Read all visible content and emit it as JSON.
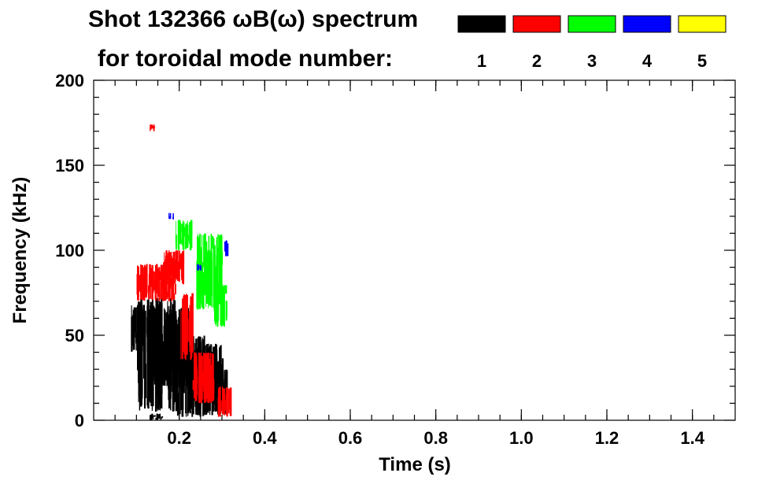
{
  "chart_data": {
    "type": "heatmap",
    "title": "Shot 132366 ωB(ω) spectrum",
    "legend_title": "for toroidal mode number:",
    "xlabel": "Time (s)",
    "ylabel": "Frequency (kHz)",
    "xlim": [
      0.0,
      1.5
    ],
    "ylim": [
      0,
      200
    ],
    "x_ticks": [
      {
        "value": 0.2,
        "label": "0.2"
      },
      {
        "value": 0.4,
        "label": "0.4"
      },
      {
        "value": 0.6,
        "label": "0.6"
      },
      {
        "value": 0.8,
        "label": "0.8"
      },
      {
        "value": 1.0,
        "label": "1.0"
      },
      {
        "value": 1.2,
        "label": "1.2"
      },
      {
        "value": 1.4,
        "label": "1.4"
      }
    ],
    "y_ticks": [
      {
        "value": 0,
        "label": "0"
      },
      {
        "value": 50,
        "label": "50"
      },
      {
        "value": 100,
        "label": "100"
      },
      {
        "value": 150,
        "label": "150"
      },
      {
        "value": 200,
        "label": "200"
      }
    ],
    "legend": [
      {
        "label": "1",
        "color": "#000000"
      },
      {
        "label": "2",
        "color": "#ff0000"
      },
      {
        "label": "3",
        "color": "#00ff00"
      },
      {
        "label": "4",
        "color": "#0000ff"
      },
      {
        "label": "5",
        "color": "#ffff00"
      }
    ],
    "series": [
      {
        "name": "n=1",
        "color": "#000000",
        "regions": [
          {
            "t": [
              0.085,
              0.14
            ],
            "f": [
              40,
              68
            ]
          },
          {
            "t": [
              0.1,
              0.19
            ],
            "f": [
              5,
              72
            ]
          },
          {
            "t": [
              0.13,
              0.22
            ],
            "f": [
              20,
              66
            ]
          },
          {
            "t": [
              0.19,
              0.26
            ],
            "f": [
              2,
              50
            ]
          },
          {
            "t": [
              0.22,
              0.3
            ],
            "f": [
              5,
              45
            ]
          },
          {
            "t": [
              0.26,
              0.31
            ],
            "f": [
              3,
              30
            ]
          },
          {
            "t": [
              0.13,
              0.16
            ],
            "f": [
              0,
              4
            ]
          }
        ]
      },
      {
        "name": "n=2",
        "color": "#ff0000",
        "regions": [
          {
            "t": [
              0.1,
              0.19
            ],
            "f": [
              70,
              92
            ]
          },
          {
            "t": [
              0.16,
              0.21
            ],
            "f": [
              80,
              100
            ]
          },
          {
            "t": [
              0.2,
              0.23
            ],
            "f": [
              35,
              75
            ]
          },
          {
            "t": [
              0.23,
              0.28
            ],
            "f": [
              10,
              40
            ]
          },
          {
            "t": [
              0.29,
              0.32
            ],
            "f": [
              2,
              20
            ]
          },
          {
            "t": [
              0.13,
              0.14
            ],
            "f": [
              170,
              174
            ]
          }
        ]
      },
      {
        "name": "n=3",
        "color": "#00ff00",
        "regions": [
          {
            "t": [
              0.19,
              0.23
            ],
            "f": [
              100,
              118
            ]
          },
          {
            "t": [
              0.24,
              0.3
            ],
            "f": [
              65,
              110
            ]
          },
          {
            "t": [
              0.28,
              0.31
            ],
            "f": [
              55,
              80
            ]
          }
        ]
      },
      {
        "name": "n=4",
        "color": "#0000ff",
        "regions": [
          {
            "t": [
              0.175,
              0.185
            ],
            "f": [
              118,
              122
            ]
          },
          {
            "t": [
              0.305,
              0.315
            ],
            "f": [
              96,
              106
            ]
          },
          {
            "t": [
              0.24,
              0.25
            ],
            "f": [
              88,
              92
            ]
          }
        ]
      },
      {
        "name": "n=5",
        "color": "#ffff00",
        "regions": []
      }
    ]
  }
}
